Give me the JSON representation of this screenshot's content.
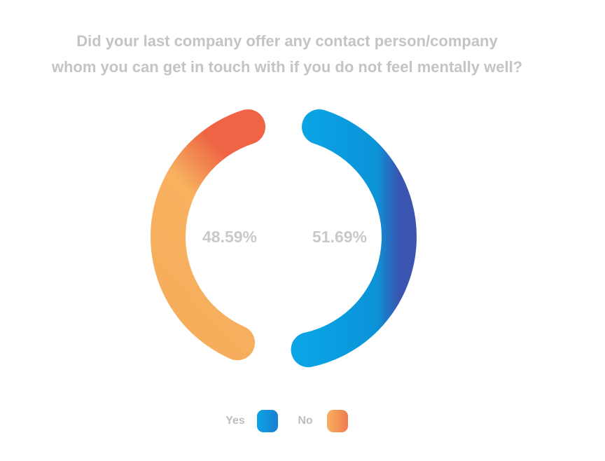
{
  "chart_data": {
    "type": "donut",
    "title": [
      "Did your last company offer any contact person/company",
      "whom you can get in touch with if you do not feel mentally  well?"
    ],
    "series": [
      {
        "name": "Yes",
        "color": "#0a9be0",
        "values": [
          51.69
        ],
        "value_labels": [
          "51.69%"
        ]
      },
      {
        "name": "No",
        "color": "#f6ad5c",
        "values": [
          48.59
        ],
        "value_labels": [
          "48.59%"
        ]
      }
    ],
    "legend": "bottom"
  }
}
